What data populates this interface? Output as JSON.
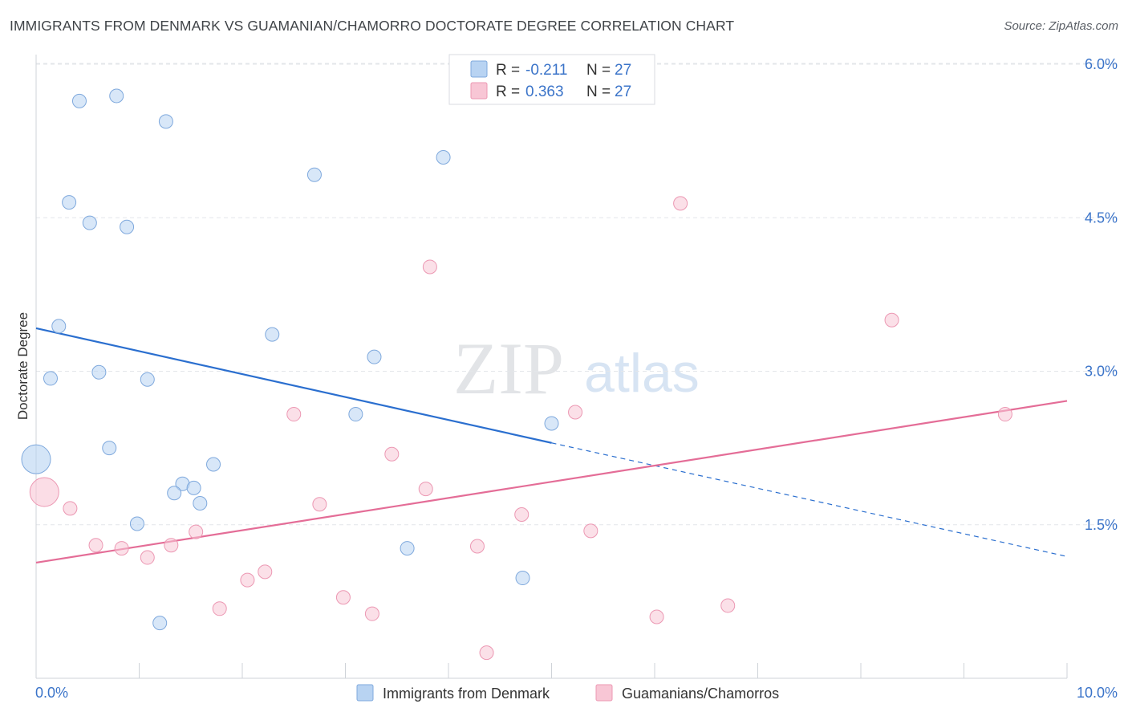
{
  "title": "IMMIGRANTS FROM DENMARK VS GUAMANIAN/CHAMORRO DOCTORATE DEGREE CORRELATION CHART",
  "source": "Source: ZipAtlas.com",
  "watermark": {
    "zip": "ZIP",
    "atlas": "atlas"
  },
  "colors": {
    "blue_fill": "#b8d3f2",
    "blue_stroke": "#7fa9dd",
    "blue_line": "#2b6fcf",
    "pink_fill": "#f8c6d5",
    "pink_stroke": "#ec98b3",
    "pink_line": "#e46d97",
    "axis_text": "#3b74c9",
    "grid": "#e3e6ea"
  },
  "legend": {
    "rows": [
      {
        "r_label": "R =",
        "r_value": "-0.211",
        "n_label": "N =",
        "n_value": "27"
      },
      {
        "r_label": "R =",
        "r_value": "0.363",
        "n_label": "N =",
        "n_value": "27"
      }
    ]
  },
  "chart_data": {
    "type": "scatter",
    "ylabel": "Doctorate Degree",
    "xlim": [
      0,
      10
    ],
    "ylim": [
      0,
      6.2
    ],
    "x_tick_labels": [
      {
        "x": 0,
        "label": "0.0%"
      },
      {
        "x": 10,
        "label": "10.0%"
      }
    ],
    "y_ticks": [
      {
        "value": 1.5,
        "label": "1.5%"
      },
      {
        "value": 3.0,
        "label": "3.0%"
      },
      {
        "value": 4.5,
        "label": "4.5%"
      },
      {
        "value": 6.0,
        "label": "6.0%"
      }
    ],
    "series": [
      {
        "name": "Immigrants from Denmark",
        "color_key": "blue",
        "points": [
          {
            "x": 0.0,
            "y": 2.14,
            "big": true
          },
          {
            "x": 0.42,
            "y": 5.64
          },
          {
            "x": 0.78,
            "y": 5.69
          },
          {
            "x": 1.26,
            "y": 5.44
          },
          {
            "x": 0.32,
            "y": 4.65
          },
          {
            "x": 0.52,
            "y": 4.45
          },
          {
            "x": 0.88,
            "y": 4.41
          },
          {
            "x": 0.22,
            "y": 3.44
          },
          {
            "x": 0.14,
            "y": 2.93
          },
          {
            "x": 0.61,
            "y": 2.99
          },
          {
            "x": 1.08,
            "y": 2.92
          },
          {
            "x": 0.71,
            "y": 2.25
          },
          {
            "x": 1.72,
            "y": 2.09
          },
          {
            "x": 1.42,
            "y": 1.9
          },
          {
            "x": 1.53,
            "y": 1.86
          },
          {
            "x": 1.34,
            "y": 1.81
          },
          {
            "x": 1.59,
            "y": 1.71
          },
          {
            "x": 0.98,
            "y": 1.51
          },
          {
            "x": 1.2,
            "y": 0.54
          },
          {
            "x": 2.29,
            "y": 3.36
          },
          {
            "x": 2.7,
            "y": 4.92
          },
          {
            "x": 3.28,
            "y": 3.14
          },
          {
            "x": 3.1,
            "y": 2.58
          },
          {
            "x": 3.6,
            "y": 1.27
          },
          {
            "x": 3.95,
            "y": 5.09
          },
          {
            "x": 4.72,
            "y": 0.98
          },
          {
            "x": 5.0,
            "y": 2.49
          }
        ],
        "trend": {
          "x0": 0.0,
          "y0": 3.42,
          "x1": 5.0,
          "y1": 2.3,
          "dash_x1": 10.0,
          "dash_y1": 1.19
        }
      },
      {
        "name": "Guamanians/Chamorros",
        "color_key": "pink",
        "points": [
          {
            "x": 0.08,
            "y": 1.82,
            "big": true
          },
          {
            "x": 0.33,
            "y": 1.66
          },
          {
            "x": 0.58,
            "y": 1.3
          },
          {
            "x": 0.83,
            "y": 1.27
          },
          {
            "x": 1.08,
            "y": 1.18
          },
          {
            "x": 1.31,
            "y": 1.3
          },
          {
            "x": 1.55,
            "y": 1.43
          },
          {
            "x": 1.78,
            "y": 0.68
          },
          {
            "x": 2.05,
            "y": 0.96
          },
          {
            "x": 2.22,
            "y": 1.04
          },
          {
            "x": 2.5,
            "y": 2.58
          },
          {
            "x": 2.75,
            "y": 1.7
          },
          {
            "x": 2.98,
            "y": 0.79
          },
          {
            "x": 3.26,
            "y": 0.63
          },
          {
            "x": 3.45,
            "y": 2.19
          },
          {
            "x": 3.78,
            "y": 1.85
          },
          {
            "x": 3.82,
            "y": 4.02
          },
          {
            "x": 4.28,
            "y": 1.29
          },
          {
            "x": 4.37,
            "y": 0.25
          },
          {
            "x": 4.71,
            "y": 1.6
          },
          {
            "x": 5.23,
            "y": 2.6
          },
          {
            "x": 5.38,
            "y": 1.44
          },
          {
            "x": 6.02,
            "y": 0.6
          },
          {
            "x": 6.25,
            "y": 4.64
          },
          {
            "x": 6.71,
            "y": 0.71
          },
          {
            "x": 8.3,
            "y": 3.5
          },
          {
            "x": 9.4,
            "y": 2.58
          }
        ],
        "trend": {
          "x0": 0.0,
          "y0": 1.13,
          "x1": 10.0,
          "y1": 2.71
        }
      }
    ]
  }
}
